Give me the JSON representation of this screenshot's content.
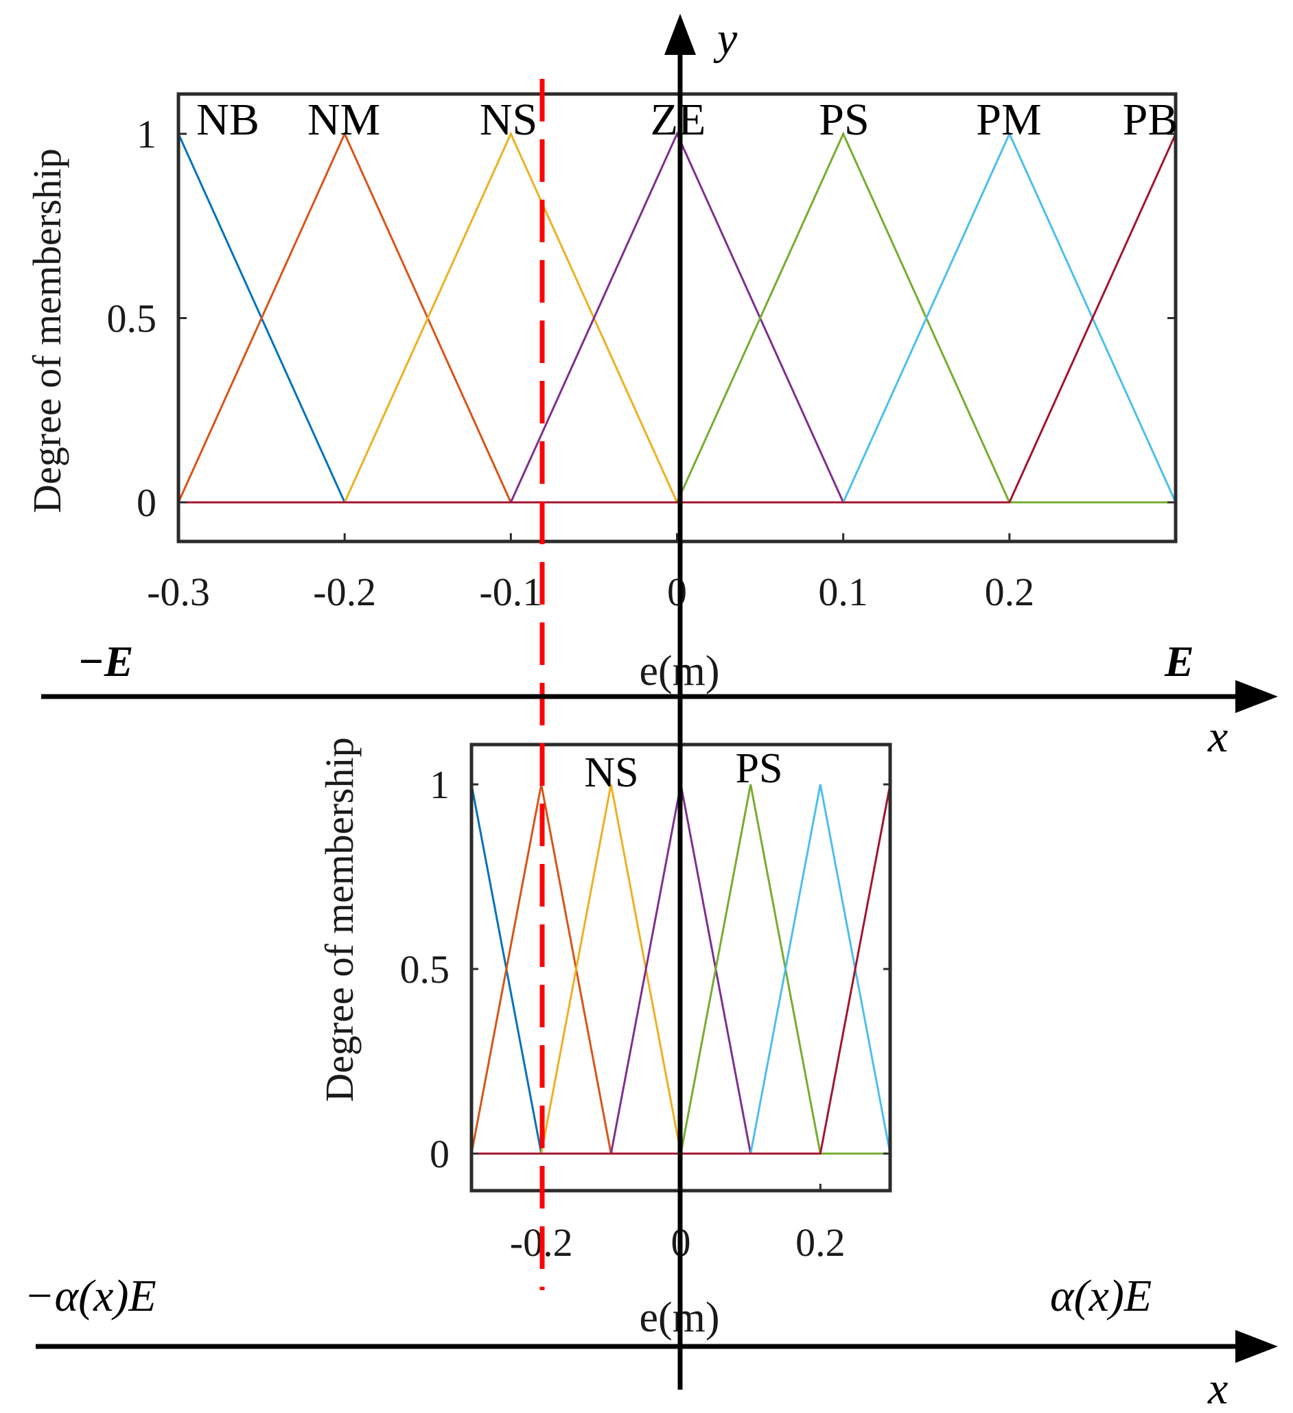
{
  "chart_data": [
    {
      "type": "line",
      "ylabel": "Degree of membership",
      "xlabel": "e(m)",
      "xlim": [
        -0.3,
        0.3
      ],
      "ylim": [
        -0.1,
        1.1
      ],
      "xticks": [
        "-0.3",
        "-0.2",
        "-0.1",
        "0",
        "0.1",
        "0.2"
      ],
      "yticks": [
        "0",
        "0.5",
        "1"
      ],
      "labels": [
        "NB",
        "NM",
        "NS",
        "ZE",
        "PS",
        "PM",
        "PB"
      ],
      "series": [
        {
          "name": "NB",
          "color": "#0072BD",
          "x": [
            -0.3,
            -0.2,
            0.3
          ],
          "y": [
            1,
            0,
            0
          ]
        },
        {
          "name": "NM",
          "color": "#D95319",
          "x": [
            -0.3,
            -0.2,
            -0.1,
            0.3
          ],
          "y": [
            0,
            1,
            0,
            0
          ]
        },
        {
          "name": "NS",
          "color": "#EDB120",
          "x": [
            -0.3,
            -0.2,
            -0.1,
            0,
            0.3
          ],
          "y": [
            0,
            0,
            1,
            0,
            0
          ]
        },
        {
          "name": "ZE",
          "color": "#7E2F8E",
          "x": [
            -0.3,
            -0.1,
            0,
            0.1,
            0.3
          ],
          "y": [
            0,
            0,
            1,
            0,
            0
          ]
        },
        {
          "name": "PS",
          "color": "#77AC30",
          "x": [
            -0.3,
            0,
            0.1,
            0.2,
            0.3
          ],
          "y": [
            0,
            0,
            1,
            0,
            0
          ]
        },
        {
          "name": "PM",
          "color": "#4DBEEE",
          "x": [
            -0.3,
            0.1,
            0.2,
            0.3
          ],
          "y": [
            0,
            0,
            1,
            0
          ]
        },
        {
          "name": "PB",
          "color": "#A2142F",
          "x": [
            -0.3,
            0.2,
            0.3
          ],
          "y": [
            0,
            0,
            1
          ]
        }
      ]
    },
    {
      "type": "line",
      "ylabel": "Degree of membership",
      "xlabel": "e(m)",
      "xlim": [
        -0.3,
        0.3
      ],
      "ylim": [
        -0.1,
        1.1
      ],
      "xticks": [
        "-0.2",
        "0",
        "0.2"
      ],
      "yticks": [
        "0",
        "0.5",
        "1"
      ],
      "labels": [
        "NS",
        "PS"
      ],
      "series": [
        {
          "name": "NB",
          "color": "#0072BD",
          "x": [
            -0.3,
            -0.2,
            0.3
          ],
          "y": [
            1,
            0,
            0
          ]
        },
        {
          "name": "NM",
          "color": "#D95319",
          "x": [
            -0.3,
            -0.2,
            -0.1,
            0.3
          ],
          "y": [
            0,
            1,
            0,
            0
          ]
        },
        {
          "name": "NS",
          "color": "#EDB120",
          "x": [
            -0.3,
            -0.2,
            -0.1,
            0,
            0.3
          ],
          "y": [
            0,
            0,
            1,
            0,
            0
          ]
        },
        {
          "name": "ZE",
          "color": "#7E2F8E",
          "x": [
            -0.3,
            -0.1,
            0,
            0.1,
            0.3
          ],
          "y": [
            0,
            0,
            1,
            0,
            0
          ]
        },
        {
          "name": "PS",
          "color": "#77AC30",
          "x": [
            -0.3,
            0,
            0.1,
            0.2,
            0.3
          ],
          "y": [
            0,
            0,
            1,
            0,
            0
          ]
        },
        {
          "name": "PM",
          "color": "#4DBEEE",
          "x": [
            -0.3,
            0.1,
            0.2,
            0.3
          ],
          "y": [
            0,
            0,
            1,
            0
          ]
        },
        {
          "name": "PB",
          "color": "#A2142F",
          "x": [
            -0.3,
            0.2,
            0.3
          ],
          "y": [
            0,
            0,
            1
          ]
        }
      ]
    }
  ],
  "diagram": {
    "y_axis_label": "y",
    "top_axis": {
      "left": "−E",
      "right": "E",
      "label": "x"
    },
    "bottom_axis": {
      "left": "−α(x)E",
      "right": "α(x)E",
      "label": "x"
    },
    "marker_line_color": "#ff0000"
  }
}
